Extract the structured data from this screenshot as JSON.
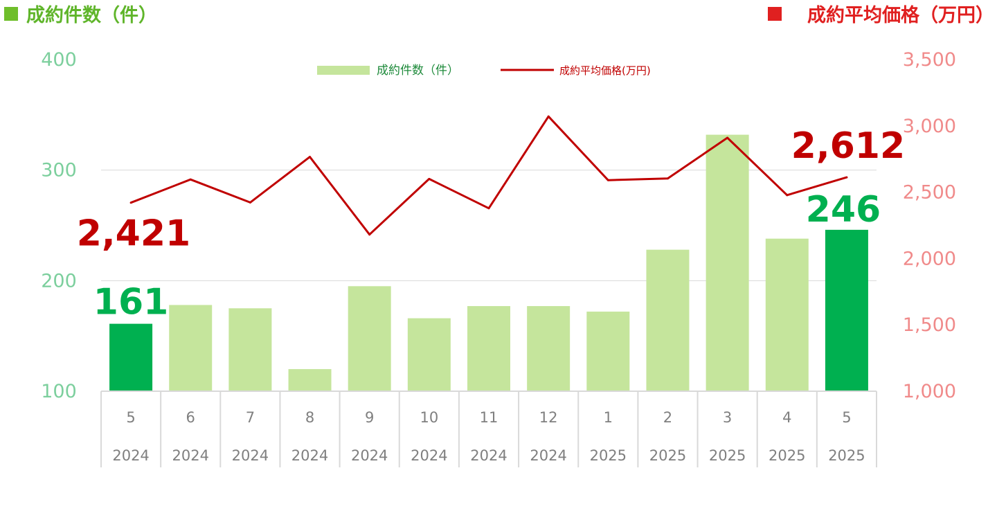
{
  "header": {
    "left_label": "成約件数（件）",
    "right_label": "成約平均価格（万円）"
  },
  "colors": {
    "bar_light": "#c5e59c",
    "bar_highlight": "#00b050",
    "line": "#c00000",
    "left_axis": "#7ccf9d",
    "right_axis": "#f08a8a",
    "left_header": "#5fb52a",
    "right_header": "#e02020",
    "left_header_square": "#6fbe2b",
    "right_header_square": "#e02020",
    "grid": "#d9d9d9",
    "category_text": "#7f7f7f"
  },
  "chart_data": {
    "type": "bar",
    "categories": [
      "5",
      "6",
      "7",
      "8",
      "9",
      "10",
      "11",
      "12",
      "1",
      "2",
      "3",
      "4",
      "5"
    ],
    "category_years": [
      "2024",
      "2024",
      "2024",
      "2024",
      "2024",
      "2024",
      "2024",
      "2024",
      "2025",
      "2025",
      "2025",
      "2025",
      "2025"
    ],
    "series": [
      {
        "name": "成約件数（件）",
        "type": "bar",
        "axis": "left",
        "values": [
          161,
          178,
          175,
          120,
          195,
          166,
          177,
          177,
          172,
          228,
          332,
          238,
          246
        ],
        "highlight_indices": [
          0,
          12
        ]
      },
      {
        "name": "成約平均価格(万円)",
        "type": "line",
        "axis": "right",
        "values": [
          2421,
          2596,
          2423,
          2766,
          2181,
          2600,
          2379,
          3071,
          2591,
          2604,
          2910,
          2478,
          2612
        ]
      }
    ],
    "y_left": {
      "ticks": [
        "100",
        "200",
        "300",
        "400"
      ],
      "ylim": [
        100,
        400
      ]
    },
    "y_right": {
      "ticks": [
        "1,000",
        "1,500",
        "2,000",
        "2,500",
        "3,000",
        "3,500"
      ],
      "ylim": [
        1000,
        3500
      ]
    },
    "annotations": [
      {
        "series": 1,
        "index": 0,
        "text": "2,421"
      },
      {
        "series": 0,
        "index": 0,
        "text": "161"
      },
      {
        "series": 1,
        "index": 12,
        "text": "2,612"
      },
      {
        "series": 0,
        "index": 12,
        "text": "246"
      }
    ],
    "legend_position": "top-center",
    "grid": true
  }
}
